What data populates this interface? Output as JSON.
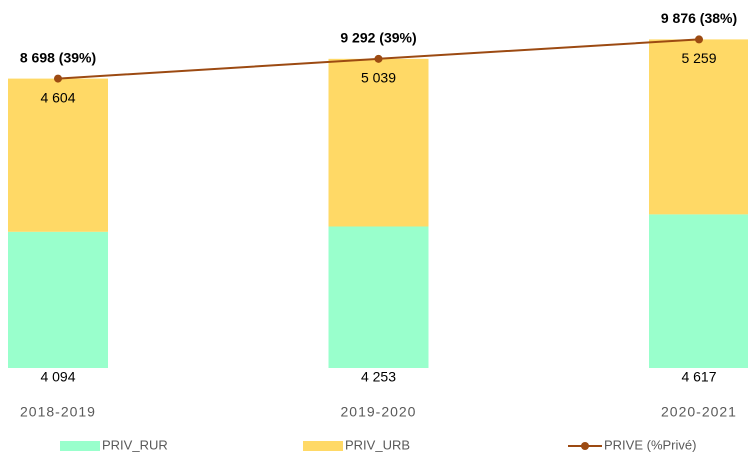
{
  "chart_data": {
    "type": "bar",
    "categories": [
      "2018-2019",
      "2019-2020",
      "2020-2021"
    ],
    "series": [
      {
        "name": "PRIV_RUR",
        "color": "#99ffcc",
        "values": [
          4094,
          4253,
          4617
        ],
        "value_labels": [
          "4 094",
          "4 253",
          "4 617"
        ]
      },
      {
        "name": "PRIV_URB",
        "color": "#ffd966",
        "values": [
          4604,
          5039,
          5259
        ],
        "value_labels": [
          "4 604",
          "5 039",
          "5 259"
        ]
      },
      {
        "name": "PRIVE (%Privé)",
        "type": "line",
        "color": "#9c4a12",
        "values": [
          8698,
          9292,
          9876
        ],
        "value_labels": [
          "8 698 (39%)",
          "9 292 (39%)",
          "9 876 (38%)"
        ]
      }
    ],
    "stacked": true,
    "ylim": [
      0,
      11000
    ],
    "legend": "bottom"
  }
}
